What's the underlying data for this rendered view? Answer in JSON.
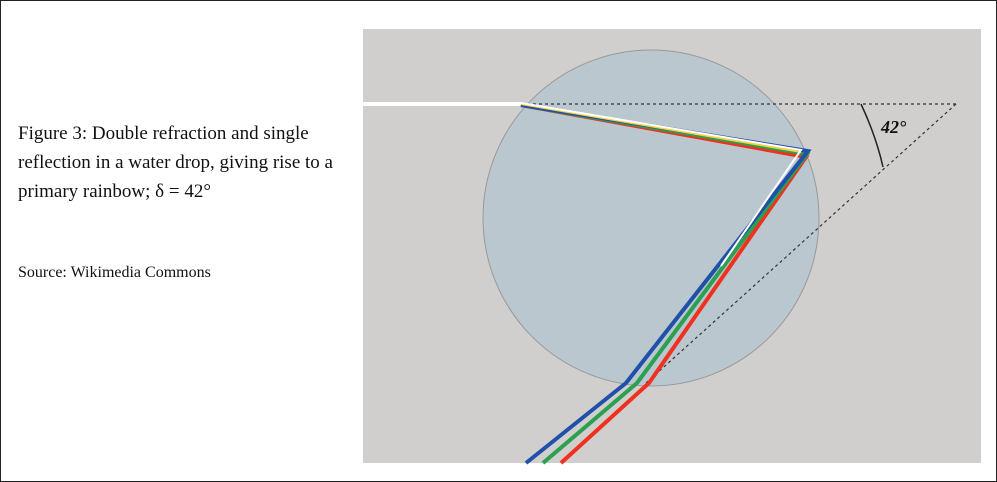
{
  "figure": {
    "caption": "Figure 3:  Double refraction and single reflection in a water drop, giving rise to a primary rainbow; δ = 42°",
    "source": "Source: Wikimedia Commons",
    "angle_label": "42°"
  }
}
